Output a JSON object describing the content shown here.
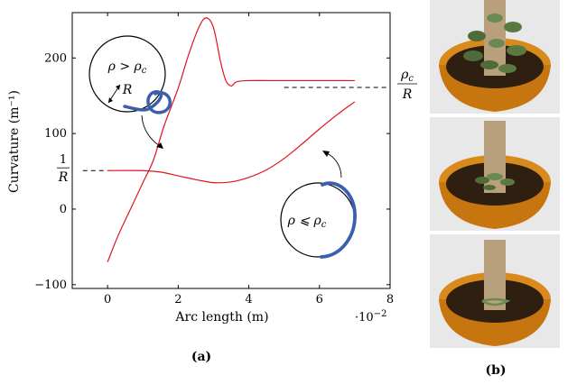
{
  "chart_data": {
    "type": "line",
    "xlabel": "Arc length (m)",
    "ylabel": "Curvature (m⁻¹)",
    "x_multiplier_label": "·10",
    "x_multiplier_exp": "−2",
    "xlim": [
      -1,
      8
    ],
    "ylim": [
      -105,
      260
    ],
    "x_ticks": [
      0,
      2,
      4,
      6,
      8
    ],
    "y_ticks": [
      -100,
      0,
      100,
      200
    ],
    "x_tick_labels": [
      "0",
      "2",
      "4",
      "6",
      "8"
    ],
    "y_tick_labels": [
      "−100",
      "0",
      "100",
      "200"
    ],
    "grid": false,
    "series": [
      {
        "color": "#e0141e",
        "x": [
          0,
          0.3,
          0.7,
          1.0,
          1.3,
          1.6,
          2.0,
          2.3,
          2.6,
          2.8,
          3.0,
          3.2,
          3.35,
          3.5,
          3.6,
          3.7,
          4.0,
          5.0,
          6.0,
          7.0
        ],
        "y": [
          -70,
          -35,
          5,
          35,
          65,
          110,
          160,
          205,
          242,
          253,
          240,
          195,
          170,
          163,
          167,
          169,
          170,
          170,
          170,
          170
        ]
      },
      {
        "color": "#e0141e",
        "x": [
          0,
          1.0,
          1.5,
          2.0,
          2.5,
          3.0,
          3.5,
          4.0,
          4.5,
          5.0,
          5.5,
          6.0,
          6.5,
          7.0
        ],
        "y": [
          51,
          51,
          49,
          44,
          39,
          35,
          36,
          42,
          52,
          67,
          86,
          106,
          125,
          142
        ]
      }
    ],
    "reference_lines": [
      {
        "y": 51,
        "x_from": -0.7,
        "x_to": 0
      },
      {
        "y": 161,
        "x_from": 5.0,
        "x_to": 8.0
      }
    ],
    "annotations": {
      "left_ref_num": "1",
      "left_ref_den": "R",
      "right_ref_num_base": "ρ",
      "right_ref_num_sub": "c",
      "right_ref_den": "R",
      "top_inset": {
        "text_base": "ρ > ρ",
        "text_sub": "c",
        "radius_label": "R"
      },
      "bottom_inset": {
        "text_base": "ρ ⩽ ρ",
        "text_sub": "c"
      }
    },
    "caption": "(a)"
  },
  "figure_b": {
    "caption": "(b)",
    "panels": [
      {
        "vine_level": "dense"
      },
      {
        "vine_level": "medium"
      },
      {
        "vine_level": "sparse"
      }
    ],
    "colors": {
      "pot": "#c7750f",
      "pot_rim": "#d98a1c",
      "soil": "#2e1f10",
      "trunk": "#b9a07c",
      "leaf": "#4f6b3a",
      "background": "#e8e8e8"
    }
  },
  "colors": {
    "curve": "#e0141e",
    "inset_spiral": "#3b5fad",
    "axis": "#000000"
  }
}
